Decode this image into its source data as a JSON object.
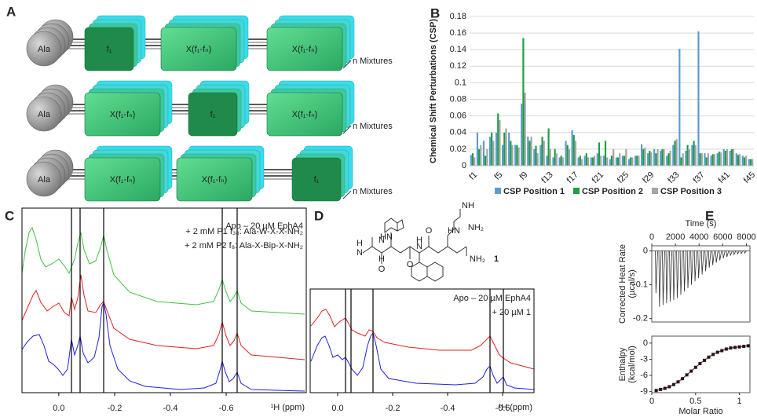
{
  "panel_a": {
    "label": "A",
    "rows": [
      {
        "sphere": "Ala",
        "boxes": [
          "f₁",
          "X(f₁-fₙ)",
          "X(f₁-fₙ)"
        ],
        "note": "n Mixtures"
      },
      {
        "sphere": "Ala",
        "boxes": [
          "X(f₁-fₙ)",
          "f₁",
          "X(f₁-fₙ)"
        ],
        "note": "n Mixtures"
      },
      {
        "sphere": "Ala",
        "boxes": [
          "X(f₁-fₙ)",
          "X(f₁-fₙ)",
          "f₁"
        ],
        "note": "n Mixtures"
      }
    ]
  },
  "chart_data": [
    {
      "type": "bar",
      "panel_label": "B",
      "y_label": "Chemical Shift Perturbations (CSP)",
      "categories": [
        "f1",
        null,
        null,
        null,
        "f5",
        null,
        null,
        null,
        "f9",
        null,
        null,
        null,
        "f13",
        null,
        null,
        null,
        "f17",
        null,
        null,
        null,
        "f21",
        null,
        null,
        null,
        "f25",
        null,
        null,
        null,
        "f29",
        null,
        null,
        null,
        "f33",
        null,
        null,
        null,
        "f37",
        null,
        null,
        null,
        "f41",
        null,
        null,
        null,
        "f45"
      ],
      "series": [
        {
          "name": "CSP Position 1",
          "color": "#5b9bd5",
          "values": [
            0.013,
            0.04,
            0.03,
            0.035,
            0.04,
            0.025,
            0.04,
            0.025,
            0.075,
            0.035,
            0.02,
            0.025,
            0.012,
            0.01,
            0.01,
            0.03,
            0.043,
            0.01,
            0.012,
            0.01,
            0.015,
            0.012,
            0.008,
            0.01,
            0.012,
            0.008,
            0.012,
            0.026,
            0.015,
            0.02,
            0.018,
            0.012,
            0.025,
            0.141,
            0.018,
            0.025,
            0.162,
            0.015,
            0.012,
            0.015,
            0.02,
            0.018,
            0.015,
            0.012,
            0.008
          ]
        },
        {
          "name": "CSP Position 2",
          "color": "#1f9e45",
          "values": [
            0.015,
            0.02,
            0.012,
            0.04,
            0.063,
            0.04,
            0.03,
            0.025,
            0.154,
            0.03,
            0.024,
            0.035,
            0.045,
            0.02,
            0.012,
            0.025,
            0.037,
            0.012,
            0.015,
            0.01,
            0.028,
            0.03,
            0.012,
            0.01,
            0.012,
            0.01,
            0.012,
            0.02,
            0.018,
            0.015,
            0.02,
            0.015,
            0.03,
            0.01,
            0.025,
            0.03,
            0.015,
            0.01,
            0.014,
            0.017,
            0.018,
            0.02,
            0.013,
            0.01,
            0.008
          ]
        },
        {
          "name": "CSP Position 3",
          "color": "#a5a5a5",
          "values": [
            0.01,
            0.025,
            0.02,
            0.03,
            0.055,
            0.045,
            0.025,
            0.022,
            0.088,
            0.035,
            0.015,
            0.03,
            0.02,
            0.015,
            0.01,
            0.02,
            0.03,
            0.008,
            0.01,
            0.012,
            0.012,
            0.01,
            0.02,
            0.015,
            0.02,
            0.01,
            0.012,
            0.022,
            0.016,
            0.02,
            0.02,
            0.018,
            0.032,
            0.015,
            0.02,
            0.025,
            0.015,
            0.015,
            0.014,
            0.016,
            0.02,
            0.02,
            0.014,
            0.012,
            0.008
          ]
        }
      ],
      "ylim": [
        0,
        0.18
      ],
      "yticks": [
        0,
        0.02,
        0.04,
        0.06,
        0.08,
        0.1,
        0.12,
        0.14,
        0.16,
        0.18
      ],
      "grid": true
    },
    {
      "type": "spectrum",
      "panel_label": "C",
      "x_label": "¹H (ppm)",
      "xlim": [
        0.132,
        -0.887
      ],
      "xticks": [
        {
          "value": 0,
          "label": "0.0"
        },
        -0.2,
        -0.4,
        -0.6
      ],
      "annotations": [
        {
          "text": "Apo – 20 µM EphA4",
          "color": "#2020e0"
        },
        {
          "text": "+ 2 mM P1 f₃₈: Ala-W-X-X-NH₂",
          "color": "#e02020"
        },
        {
          "text": "+ 2 mM P2 f₈: Ala-X-Bip-X-NH₂",
          "color": "#40c040"
        }
      ]
    },
    {
      "type": "spectrum",
      "panel_label": "D",
      "x_label": "¹H (ppm)",
      "xlim": [
        0.1,
        -0.714
      ],
      "xticks": [
        {
          "value": 0,
          "label": "0.0"
        },
        -0.2,
        -0.4,
        -0.6
      ],
      "annotations": [
        {
          "text": "Apo – 20 µM EphA4",
          "color": "#2020e0"
        },
        {
          "text": "+ 20 µM 1",
          "color": "#e02020"
        }
      ],
      "structure": {
        "compound": "1",
        "atoms": [
          "H",
          "N",
          "O",
          "HN",
          "H",
          "N",
          "O",
          "H",
          "N",
          "O",
          "NH₂",
          "HN",
          "NH",
          "NH₂"
        ]
      }
    },
    {
      "type": "itc-raw",
      "panel_label": "E",
      "x_label": "Time (s)",
      "y_label": [
        "Corrected Heat Rate",
        "(µcal/s)"
      ],
      "x": [
        300,
        600,
        900,
        1200,
        1500,
        1800,
        2100,
        2400,
        2700,
        3000,
        3300,
        3600,
        3900,
        4200,
        4500,
        4800,
        5100,
        5400,
        5700,
        6000,
        6300,
        6600,
        6900,
        7200,
        7500,
        7800
      ],
      "values": [
        -0.125,
        -0.165,
        -0.16,
        -0.155,
        -0.15,
        -0.145,
        -0.14,
        -0.13,
        -0.12,
        -0.11,
        -0.1,
        -0.09,
        -0.08,
        -0.07,
        -0.06,
        -0.05,
        -0.042,
        -0.035,
        -0.028,
        -0.022,
        -0.018,
        -0.014,
        -0.011,
        -0.009,
        -0.008,
        -0.007
      ],
      "color": "#333333",
      "xlim": [
        0,
        8300
      ],
      "xticks": [
        0,
        2000,
        4000,
        6000,
        8000
      ],
      "ylim": [
        -0.21,
        0.015
      ],
      "yticks": [
        0,
        -0.1,
        -0.2
      ]
    },
    {
      "type": "scatter",
      "x_label": "Molar Ratio",
      "y_label": [
        "Enthalpy",
        "(kcal/mol)"
      ],
      "x": [
        0.05,
        0.1,
        0.15,
        0.2,
        0.25,
        0.3,
        0.35,
        0.4,
        0.45,
        0.5,
        0.55,
        0.6,
        0.65,
        0.7,
        0.75,
        0.8,
        0.85,
        0.9,
        0.95,
        1.0,
        1.05,
        1.1
      ],
      "values": [
        -8.8,
        -8.6,
        -8.4,
        -8.1,
        -7.7,
        -7.2,
        -6.6,
        -5.9,
        -5.2,
        -4.5,
        -3.8,
        -3.2,
        -2.6,
        -2.1,
        -1.7,
        -1.4,
        -1.1,
        -0.9,
        -0.8,
        -0.7,
        -0.6,
        -0.5
      ],
      "color": "#1a1a1a",
      "line_color": "#e02020",
      "xlim": [
        0,
        1.12
      ],
      "xticks": [
        0,
        0.5,
        1
      ],
      "ylim": [
        -9.2,
        1.3
      ],
      "yticks": [
        0,
        -3,
        -6,
        -9
      ]
    }
  ]
}
